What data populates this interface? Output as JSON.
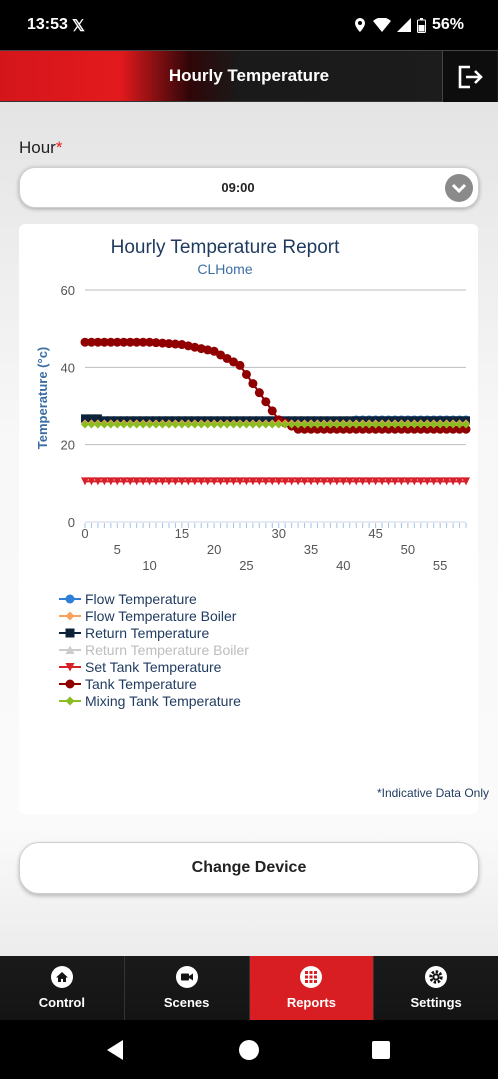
{
  "status": {
    "time": "13:53",
    "x_glyph": "𝕏",
    "battery": "56%"
  },
  "header": {
    "title": "Hourly Temperature",
    "logout_icon": "logout-icon"
  },
  "form": {
    "hour_label": "Hour",
    "required_mark": "*",
    "hour_value": "09:00"
  },
  "chart_card": {
    "title": "Hourly Temperature Report",
    "subtitle": "CLHome"
  },
  "chart_data": {
    "type": "line",
    "title": "Hourly Temperature Report",
    "subtitle": "CLHome",
    "xlabel": "",
    "ylabel": "Temperature (°c)",
    "ylim": [
      0,
      60
    ],
    "yticks": [
      0,
      20,
      40,
      60
    ],
    "xlim": [
      0,
      59
    ],
    "xticks": [
      0,
      5,
      10,
      15,
      20,
      25,
      30,
      35,
      40,
      45,
      50,
      55
    ],
    "grid": true,
    "legend_position": "bottom-left",
    "series": [
      {
        "name": "Flow Temperature",
        "color": "#2f7ed8",
        "marker": "circle",
        "visible": true,
        "values": "26 until x=42, then 26.5"
      },
      {
        "name": "Flow Temperature Boiler",
        "color": "#f7a35c",
        "marker": "diamond",
        "visible": true,
        "values": "25.5"
      },
      {
        "name": "Return Temperature",
        "color": "#0d233a",
        "marker": "square",
        "visible": true,
        "values": "26.3 (x=0-2: 26.8)"
      },
      {
        "name": "Return Temperature Boiler",
        "color": "#bdbdbd",
        "marker": "triangle",
        "visible": false,
        "values": "hidden"
      },
      {
        "name": "Set Tank Temperature",
        "color": "#d8202a",
        "marker": "triangle-down",
        "visible": true,
        "values": "10.5"
      },
      {
        "name": "Tank Temperature",
        "color": "#910000",
        "marker": "circle",
        "visible": true,
        "values": "46.5 at x=0 falling to 24 at x=33, then 24"
      },
      {
        "name": "Mixing Tank Temperature",
        "color": "#8bbc21",
        "marker": "diamond",
        "visible": true,
        "values": "25.2"
      }
    ]
  },
  "notes": {
    "indicative": "*Indicative Data Only"
  },
  "buttons": {
    "change_device": "Change Device"
  },
  "tabs": [
    {
      "label": "Control",
      "icon": "home-icon",
      "active": false
    },
    {
      "label": "Scenes",
      "icon": "video-camera-icon",
      "active": false
    },
    {
      "label": "Reports",
      "icon": "grid-icon",
      "active": true
    },
    {
      "label": "Settings",
      "icon": "gear-icon",
      "active": false
    }
  ]
}
